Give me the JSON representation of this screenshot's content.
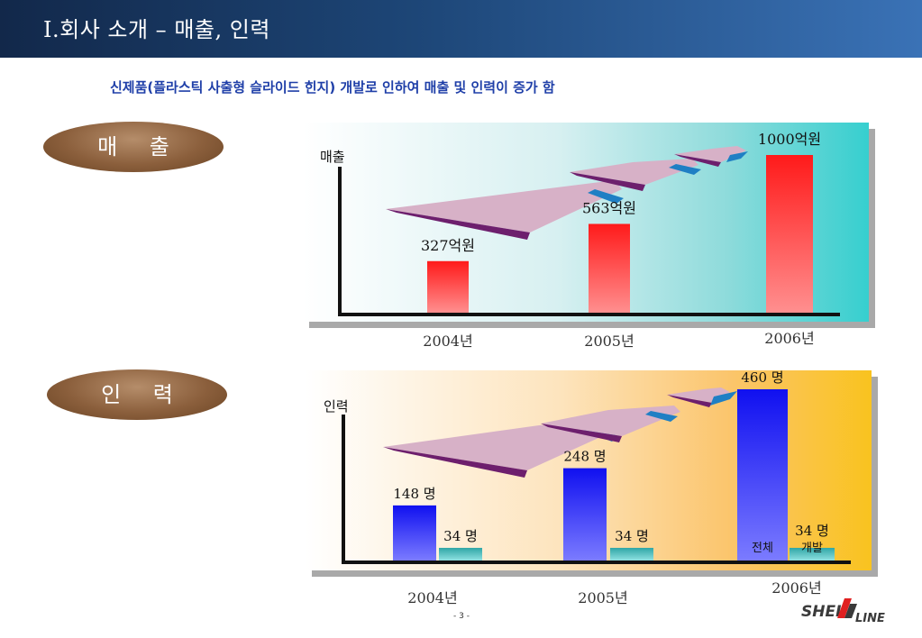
{
  "header": {
    "title": "I.회사 소개 – 매출, 인력"
  },
  "subtitle": "신제품(플라스틱 사출형 슬라이드 힌지) 개발로 인하여 매출 및 인력이 증가 함",
  "sections": {
    "sales_label": "매 출",
    "staff_label": "인 력"
  },
  "colors": {
    "header_dark": "#12284a",
    "header_light": "#3a72b6",
    "subtitle": "#1f3fa8"
  },
  "chart_data": [
    {
      "type": "bar",
      "ylabel": "매출",
      "categories": [
        "2004년",
        "2005년",
        "2006년"
      ],
      "values": [
        327,
        563,
        1000
      ],
      "value_labels": [
        "327억원",
        "563억원",
        "1000억원"
      ],
      "ylim": [
        0,
        1000
      ],
      "grid": false,
      "legend": "none"
    },
    {
      "type": "bar",
      "ylabel": "인력",
      "categories": [
        "2004년",
        "2005년",
        "2006년"
      ],
      "series": [
        {
          "name": "전체",
          "values": [
            148,
            248,
            460
          ],
          "value_labels": [
            "148 명",
            "248 명",
            "460 명"
          ]
        },
        {
          "name": "개발",
          "values": [
            34,
            34,
            34
          ],
          "value_labels": [
            "34 명",
            "34 명",
            "34 명"
          ]
        }
      ],
      "ylim": [
        0,
        460
      ],
      "grid": false,
      "legend": "in-bar"
    }
  ],
  "footer": {
    "page": "- 3 -",
    "logo_text": "SHELL LINE"
  }
}
